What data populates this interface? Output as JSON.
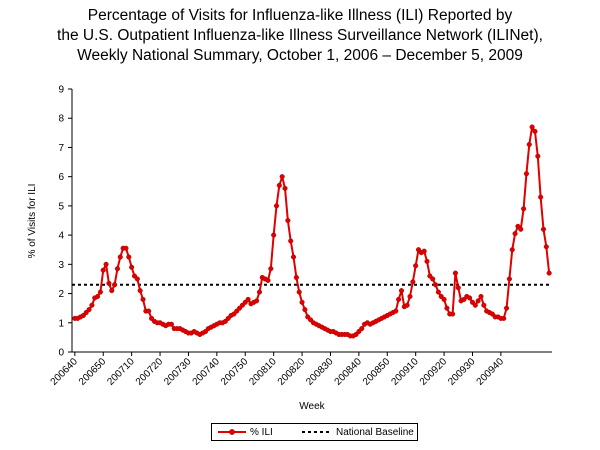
{
  "chart_data": {
    "type": "line",
    "title_lines": [
      "Percentage of Visits for Influenza-like Illness (ILI) Reported by",
      "the U.S. Outpatient Influenza-like Illness Surveillance Network (ILINet),",
      "Weekly National Summary, October 1, 2006 – December 5, 2009"
    ],
    "xlabel": "Week",
    "ylabel": "% of Visits for ILI",
    "ylim": [
      0,
      9
    ],
    "y_ticks": [
      0,
      1,
      2,
      3,
      4,
      5,
      6,
      7,
      8,
      9
    ],
    "x_tick_labels": [
      "200640",
      "200650",
      "200710",
      "200720",
      "200730",
      "200740",
      "200750",
      "200810",
      "200820",
      "200830",
      "200840",
      "200850",
      "200910",
      "200920",
      "200930",
      "200940"
    ],
    "x_tick_every": 10,
    "grid": false,
    "legend_position": "bottom-center",
    "series": [
      {
        "name": "% ILI",
        "color": "#e00000",
        "values": [
          1.15,
          1.15,
          1.2,
          1.25,
          1.35,
          1.45,
          1.6,
          1.85,
          1.9,
          2.05,
          2.8,
          3.0,
          2.35,
          2.1,
          2.3,
          2.85,
          3.25,
          3.55,
          3.55,
          3.25,
          2.9,
          2.6,
          2.5,
          2.1,
          1.8,
          1.4,
          1.4,
          1.15,
          1.05,
          1.0,
          1.0,
          0.95,
          0.9,
          0.95,
          0.95,
          0.8,
          0.8,
          0.8,
          0.75,
          0.7,
          0.65,
          0.65,
          0.7,
          0.65,
          0.6,
          0.65,
          0.7,
          0.8,
          0.85,
          0.9,
          0.95,
          1.0,
          1.0,
          1.05,
          1.15,
          1.25,
          1.3,
          1.4,
          1.5,
          1.6,
          1.7,
          1.8,
          1.65,
          1.7,
          1.75,
          2.05,
          2.55,
          2.5,
          2.45,
          2.85,
          4.0,
          5.0,
          5.7,
          6.0,
          5.6,
          4.5,
          3.8,
          3.25,
          2.55,
          2.05,
          1.7,
          1.45,
          1.2,
          1.1,
          1.0,
          0.95,
          0.9,
          0.85,
          0.8,
          0.75,
          0.7,
          0.7,
          0.65,
          0.6,
          0.6,
          0.6,
          0.6,
          0.55,
          0.55,
          0.6,
          0.7,
          0.8,
          0.95,
          1.0,
          0.95,
          1.0,
          1.05,
          1.1,
          1.15,
          1.2,
          1.25,
          1.3,
          1.35,
          1.4,
          1.8,
          2.1,
          1.55,
          1.6,
          1.9,
          2.4,
          2.95,
          3.5,
          3.4,
          3.45,
          3.1,
          2.6,
          2.5,
          2.3,
          2.05,
          1.9,
          1.8,
          1.5,
          1.3,
          1.3,
          2.7,
          2.2,
          1.75,
          1.8,
          1.9,
          1.85,
          1.7,
          1.6,
          1.75,
          1.9,
          1.6,
          1.4,
          1.35,
          1.3,
          1.2,
          1.2,
          1.15,
          1.15,
          1.5,
          2.5,
          3.5,
          4.05,
          4.3,
          4.2,
          4.9,
          6.1,
          7.1,
          7.7,
          7.55,
          6.7,
          5.3,
          4.2,
          3.6,
          2.7
        ]
      },
      {
        "name": "National Baseline",
        "color": "#000000",
        "style": "dashed",
        "constant": 2.3
      }
    ]
  }
}
